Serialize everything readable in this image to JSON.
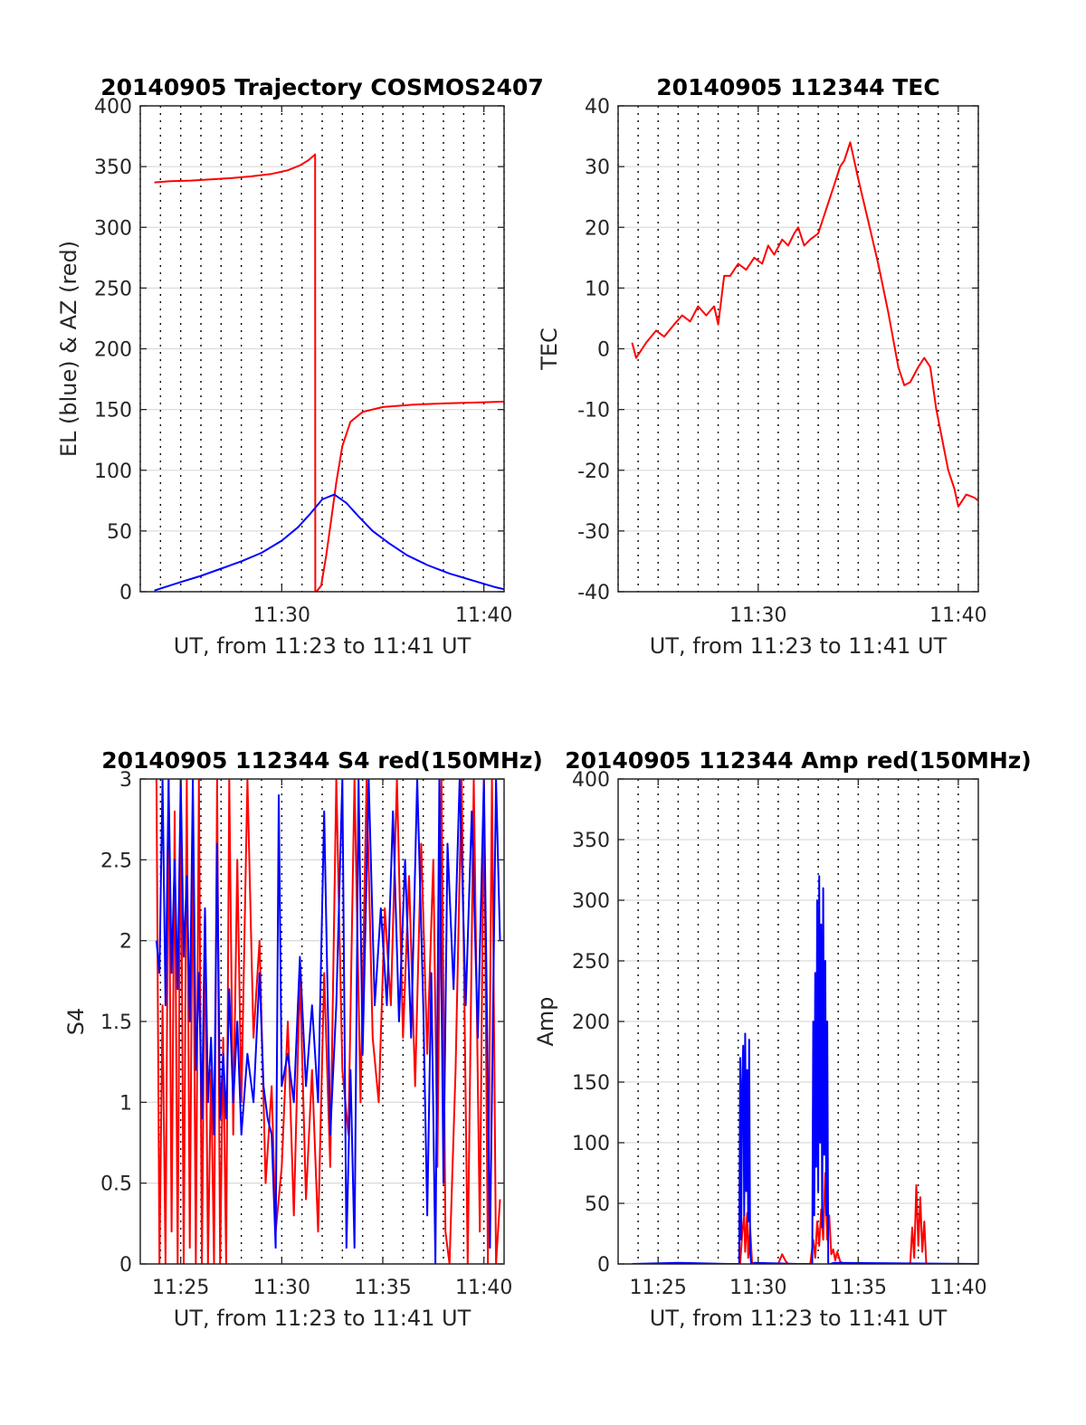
{
  "chart_data": [
    {
      "type": "line",
      "title": "20140905 Trajectory COSMOS2407",
      "xlabel": "UT, from 11:23 to 11:41 UT",
      "ylabel": "EL (blue) & AZ (red)",
      "xlim": [
        23.0,
        41.0
      ],
      "ylim": [
        0,
        400
      ],
      "yticks": [
        0,
        50,
        100,
        150,
        200,
        250,
        300,
        350,
        400
      ],
      "xticks": [
        {
          "x": 30,
          "label": "11:30"
        },
        {
          "x": 40,
          "label": "11:40"
        }
      ],
      "vgrid_x": [
        23.0,
        24.0,
        25.0,
        26.0,
        27.0,
        28.0,
        29.0,
        30.0,
        31.0,
        32.0,
        33.0,
        34.0,
        35.0,
        36.0,
        37.0,
        38.0,
        39.0,
        40.0,
        41.0
      ],
      "grid": true,
      "series": [
        {
          "color": "#ff0000",
          "x": [
            23.7,
            24.5,
            25.5,
            26.5,
            27.5,
            28.5,
            29.5,
            30.3,
            30.9,
            31.3,
            31.65,
            31.66,
            31.72,
            31.95,
            32.2,
            32.45,
            32.7,
            33.0,
            33.4,
            34.0,
            35.0,
            36.5,
            38.0,
            40.0,
            41.0
          ],
          "y": [
            337,
            338,
            338.5,
            339.5,
            340.5,
            342,
            344,
            347,
            351,
            355,
            360,
            0,
            0,
            5,
            30,
            60,
            90,
            120,
            140,
            148,
            152,
            154,
            155,
            156,
            156.5
          ]
        },
        {
          "color": "#0000ff",
          "x": [
            23.7,
            25.0,
            26.0,
            27.0,
            28.0,
            29.0,
            30.0,
            30.8,
            31.4,
            32.0,
            32.6,
            33.2,
            33.8,
            34.5,
            35.3,
            36.2,
            37.2,
            38.3,
            39.5,
            40.5,
            41.0
          ],
          "y": [
            1,
            8,
            13,
            19,
            25,
            32,
            42,
            53,
            64,
            76,
            80,
            73,
            62,
            50,
            40,
            30,
            22,
            15,
            9,
            4,
            2
          ]
        }
      ]
    },
    {
      "type": "line",
      "title": "20140905 112344 TEC",
      "xlabel": "UT, from 11:23 to 11:41 UT",
      "ylabel": "TEC",
      "xlim": [
        23.0,
        41.0
      ],
      "ylim": [
        -40,
        40
      ],
      "yticks": [
        -40,
        -30,
        -20,
        -10,
        0,
        10,
        20,
        30,
        40
      ],
      "xticks": [
        {
          "x": 30,
          "label": "11:30"
        },
        {
          "x": 40,
          "label": "11:40"
        }
      ],
      "vgrid_x": [
        23.0,
        24.0,
        25.0,
        26.0,
        27.0,
        28.0,
        29.0,
        30.0,
        31.0,
        32.0,
        33.0,
        34.0,
        35.0,
        36.0,
        37.0,
        38.0,
        39.0,
        40.0,
        41.0
      ],
      "grid": true,
      "series": [
        {
          "color": "#ff0000",
          "x": [
            23.7,
            23.9,
            24.4,
            24.9,
            25.3,
            25.8,
            26.2,
            26.6,
            27.0,
            27.4,
            27.8,
            28.0,
            28.3,
            28.6,
            29.0,
            29.4,
            29.8,
            30.2,
            30.5,
            30.8,
            31.2,
            31.5,
            31.8,
            32.0,
            32.3,
            32.6,
            33.0,
            33.4,
            33.8,
            34.1,
            34.3,
            34.6,
            35.0,
            35.5,
            36.0,
            36.5,
            37.0,
            37.3,
            37.6,
            38.0,
            38.3,
            38.6,
            38.9,
            39.2,
            39.5,
            39.8,
            40.0,
            40.4,
            40.8,
            41.0
          ],
          "y": [
            1,
            -1.5,
            1,
            3,
            2,
            4,
            5.5,
            4.5,
            7,
            5.5,
            7,
            4,
            12,
            12,
            14,
            13,
            15,
            14,
            17,
            15.5,
            18,
            17,
            19,
            20,
            17,
            18,
            19,
            23,
            27,
            30,
            31,
            34,
            28,
            21,
            14,
            6,
            -3,
            -6,
            -5.5,
            -3,
            -1.5,
            -3,
            -10,
            -15,
            -20,
            -23,
            -26,
            -24,
            -24.5,
            -25
          ]
        }
      ]
    },
    {
      "type": "line",
      "title": "20140905 112344 S4 red(150MHz)",
      "xlabel": "UT, from 11:23 to 11:41 UT",
      "ylabel": "S4",
      "xlim": [
        23.0,
        41.0
      ],
      "ylim": [
        0,
        3
      ],
      "yticks": [
        0,
        0.5,
        1,
        1.5,
        2,
        2.5,
        3
      ],
      "xticks": [
        {
          "x": 25,
          "label": "11:25"
        },
        {
          "x": 30,
          "label": "11:30"
        },
        {
          "x": 35,
          "label": "11:35"
        },
        {
          "x": 40,
          "label": "11:40"
        }
      ],
      "vgrid_x": [
        24.0,
        25.0,
        26.0,
        27.0,
        28.0,
        29.0,
        30.0,
        31.0,
        32.0,
        33.0,
        34.0,
        35.0,
        36.0,
        37.0,
        38.0,
        39.0,
        40.0
      ],
      "grid": true,
      "series": [
        {
          "color": "#ff0000",
          "x": [
            23.8,
            23.95,
            24.1,
            24.25,
            24.4,
            24.55,
            24.7,
            24.85,
            25.0,
            25.15,
            25.3,
            25.45,
            25.6,
            25.75,
            25.9,
            26.05,
            26.2,
            26.35,
            26.5,
            26.65,
            26.8,
            26.95,
            27.1,
            27.25,
            27.4,
            27.6,
            27.8,
            28.0,
            28.3,
            28.6,
            28.9,
            29.2,
            29.5,
            29.7,
            30.0,
            30.3,
            30.6,
            30.9,
            31.2,
            31.5,
            31.8,
            32.1,
            32.4,
            32.7,
            33.0,
            33.3,
            33.6,
            33.9,
            34.2,
            34.5,
            34.8,
            35.1,
            35.4,
            35.7,
            36.0,
            36.3,
            36.6,
            36.9,
            37.2,
            37.5,
            37.7,
            37.9,
            38.1,
            38.3,
            38.6,
            38.9,
            39.2,
            39.5,
            39.8,
            40.0,
            40.2,
            40.4,
            40.6,
            40.8
          ],
          "y": [
            3,
            0,
            1.6,
            0,
            3,
            0.2,
            2.8,
            0,
            3,
            0,
            3,
            0.1,
            2.7,
            0,
            3,
            0,
            2.2,
            0,
            1.2,
            0,
            3,
            0,
            1.4,
            0,
            3,
            0.8,
            2.5,
            1.0,
            3,
            1.4,
            2.0,
            0.5,
            1.1,
            0.2,
            0.6,
            1.5,
            0.3,
            1.8,
            0.4,
            1.2,
            0.2,
            1.8,
            0.6,
            3,
            1.2,
            0.8,
            3,
            1.0,
            3,
            1.4,
            1.0,
            2.2,
            1.6,
            3,
            1.4,
            2.4,
            1.1,
            2.6,
            1.3,
            2.5,
            0.6,
            3,
            0.2,
            0,
            1.2,
            3,
            0,
            3,
            0.2,
            3,
            0,
            3,
            0,
            0.4
          ]
        },
        {
          "color": "#0000ff",
          "x": [
            23.8,
            23.95,
            24.1,
            24.25,
            24.4,
            24.55,
            24.7,
            24.85,
            25.0,
            25.15,
            25.3,
            25.45,
            25.6,
            25.75,
            25.9,
            26.05,
            26.2,
            26.35,
            26.5,
            26.65,
            26.8,
            26.95,
            27.1,
            27.25,
            27.4,
            27.6,
            27.8,
            28.0,
            28.3,
            28.6,
            28.9,
            29.1,
            29.3,
            29.5,
            29.7,
            29.85,
            30.0,
            30.3,
            30.6,
            30.9,
            31.2,
            31.5,
            31.8,
            32.1,
            32.4,
            32.7,
            33.0,
            33.2,
            33.4,
            33.6,
            33.8,
            34.0,
            34.3,
            34.6,
            34.9,
            35.2,
            35.5,
            35.8,
            36.1,
            36.4,
            36.7,
            37.0,
            37.2,
            37.4,
            37.6,
            37.8,
            38.0,
            38.2,
            38.5,
            38.8,
            39.1,
            39.4,
            39.7,
            40.0,
            40.3,
            40.6,
            40.8
          ],
          "y": [
            2.0,
            1.8,
            3,
            1.6,
            3,
            1.8,
            2.5,
            1.7,
            3,
            1.9,
            2.4,
            1.5,
            3,
            1.2,
            1.8,
            0.9,
            2.2,
            1.0,
            1.4,
            0.8,
            2.6,
            0.9,
            1.3,
            0.9,
            1.7,
            1.0,
            1.5,
            0.8,
            1.3,
            1.0,
            1.8,
            1.1,
            0.9,
            0.8,
            0.1,
            2.9,
            1.1,
            1.3,
            1.0,
            1.9,
            1.1,
            1.6,
            1.0,
            2.8,
            0.8,
            1.6,
            3,
            0.1,
            1.2,
            0.1,
            3,
            1.3,
            3,
            1.6,
            2.2,
            1.6,
            2.8,
            1.5,
            2.5,
            1.4,
            3,
            1.6,
            0.3,
            1.8,
            0,
            3,
            0.5,
            2.6,
            1.7,
            3,
            1.6,
            2.8,
            1.4,
            3,
            0.1,
            3,
            2.0
          ]
        }
      ]
    },
    {
      "type": "line",
      "title": "20140905 112344 Amp red(150MHz)",
      "xlabel": "UT, from 11:23 to 11:41 UT",
      "ylabel": "Amp",
      "xlim": [
        23.0,
        41.0
      ],
      "ylim": [
        0,
        400
      ],
      "yticks": [
        0,
        50,
        100,
        150,
        200,
        250,
        300,
        350,
        400
      ],
      "xticks": [
        {
          "x": 25,
          "label": "11:25"
        },
        {
          "x": 30,
          "label": "11:30"
        },
        {
          "x": 35,
          "label": "11:35"
        },
        {
          "x": 40,
          "label": "11:40"
        }
      ],
      "vgrid_x": [
        24.0,
        25.0,
        26.0,
        27.0,
        28.0,
        29.0,
        30.0,
        31.0,
        32.0,
        33.0,
        34.0,
        35.0,
        36.0,
        37.0,
        38.0,
        39.0,
        40.0
      ],
      "grid": true,
      "series": [
        {
          "color": "#ff0000",
          "x": [
            23.7,
            29.1,
            29.2,
            29.3,
            29.35,
            29.45,
            29.5,
            29.6,
            29.7,
            31.0,
            31.2,
            31.35,
            31.5,
            32.6,
            32.75,
            32.85,
            32.95,
            33.05,
            33.15,
            33.25,
            33.35,
            33.45,
            33.55,
            33.65,
            33.75,
            33.85,
            33.95,
            34.1,
            34.3,
            37.6,
            37.7,
            37.8,
            37.9,
            38.0,
            38.1,
            38.2,
            38.3,
            38.4,
            41.0
          ],
          "y": [
            0,
            0,
            25,
            40,
            10,
            42,
            5,
            30,
            0,
            0,
            8,
            3,
            0,
            0,
            20,
            5,
            35,
            15,
            45,
            20,
            75,
            20,
            40,
            8,
            12,
            3,
            10,
            2,
            0,
            0,
            30,
            5,
            65,
            15,
            55,
            10,
            35,
            0,
            0
          ]
        },
        {
          "color": "#0000ff",
          "x": [
            23.7,
            26.0,
            28.5,
            29.05,
            29.1,
            29.15,
            29.2,
            29.25,
            29.3,
            29.35,
            29.4,
            29.45,
            29.5,
            29.55,
            29.6,
            29.65,
            29.7,
            29.8,
            32.0,
            32.7,
            32.75,
            32.8,
            32.85,
            32.9,
            32.95,
            33.0,
            33.05,
            33.1,
            33.15,
            33.2,
            33.25,
            33.3,
            33.35,
            33.4,
            33.45,
            33.5,
            33.6,
            33.8,
            41.0
          ],
          "y": [
            0,
            1,
            0,
            0,
            170,
            20,
            150,
            180,
            40,
            190,
            60,
            160,
            35,
            185,
            10,
            0,
            0,
            1,
            0,
            0,
            200,
            40,
            240,
            80,
            300,
            60,
            320,
            100,
            280,
            30,
            310,
            90,
            250,
            40,
            200,
            0,
            0,
            1,
            0
          ]
        }
      ]
    }
  ]
}
